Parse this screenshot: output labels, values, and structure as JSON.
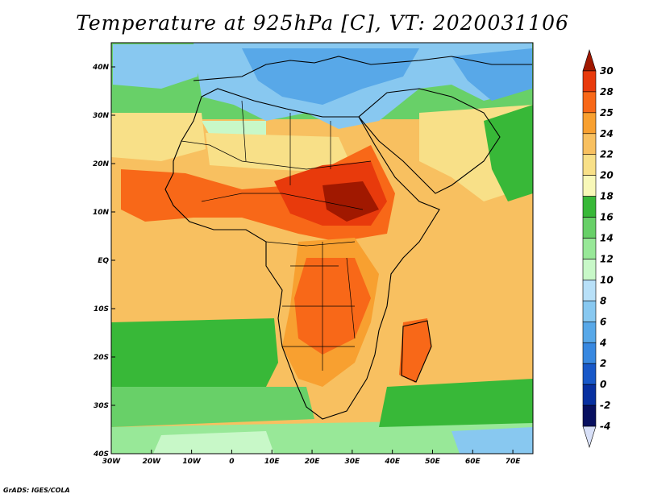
{
  "title": "Temperature at 925hPa [C], VT: 2020031106",
  "footer": "GrADS: IGES/COLA",
  "map": {
    "lat_labels": [
      "40N",
      "30N",
      "20N",
      "10N",
      "EQ",
      "10S",
      "20S",
      "30S",
      "40S"
    ],
    "lon_labels": [
      "30W",
      "20W",
      "10W",
      "0",
      "10E",
      "20E",
      "30E",
      "40E",
      "50E",
      "60E",
      "70E"
    ],
    "lat_values": [
      40,
      30,
      20,
      10,
      0,
      -10,
      -20,
      -30,
      -40
    ],
    "lon_values": [
      -30,
      -20,
      -10,
      0,
      10,
      20,
      30,
      40,
      50,
      60,
      70
    ],
    "lat_range": [
      -40,
      45
    ],
    "lon_range": [
      -30,
      75
    ]
  },
  "colorbar": {
    "labels": [
      "30",
      "28",
      "25",
      "24",
      "22",
      "20",
      "18",
      "16",
      "14",
      "12",
      "10",
      "8",
      "6",
      "4",
      "2",
      "0",
      "-2",
      "-4"
    ],
    "colors": [
      "#a01800",
      "#e83a0c",
      "#f86818",
      "#f8a030",
      "#f8c060",
      "#f8e088",
      "#f8f8b8",
      "#38b838",
      "#68d068",
      "#98e898",
      "#c8f8c8",
      "#b8e0f8",
      "#88c8f0",
      "#58a8e8",
      "#3888e0",
      "#1858c8",
      "#0830a0",
      "#081060",
      "#d8e0f8"
    ]
  }
}
